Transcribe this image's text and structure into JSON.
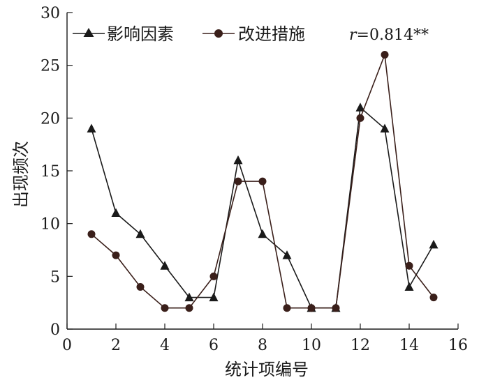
{
  "chart_data": {
    "type": "line",
    "xlabel": "统计项编号",
    "ylabel": "出现频次",
    "xlim": [
      0,
      16
    ],
    "ylim": [
      0,
      30
    ],
    "xticks": [
      "0",
      "2",
      "4",
      "6",
      "8",
      "10",
      "12",
      "14",
      "16"
    ],
    "yticks": [
      "0",
      "5",
      "10",
      "15",
      "20",
      "25",
      "30"
    ],
    "grid": false,
    "legend_position": "top",
    "annotation": {
      "r_symbol": "r",
      "r_value": "=0.814**"
    },
    "series": [
      {
        "name": "影响因素",
        "marker": "triangle",
        "color": "#1a1a1a",
        "x": [
          1,
          2,
          3,
          4,
          5,
          6,
          7,
          8,
          9,
          10,
          11,
          12,
          13,
          14,
          15
        ],
        "values": [
          19,
          11,
          9,
          6,
          3,
          3,
          16,
          9,
          7,
          2,
          2,
          21,
          19,
          4,
          8
        ]
      },
      {
        "name": "改进措施",
        "marker": "circle",
        "color": "#3a1f1a",
        "x": [
          1,
          2,
          3,
          4,
          5,
          6,
          7,
          8,
          9,
          10,
          11,
          12,
          13,
          14,
          15
        ],
        "values": [
          9,
          7,
          4,
          2,
          2,
          5,
          14,
          14,
          2,
          2,
          2,
          20,
          26,
          6,
          3
        ]
      }
    ]
  }
}
